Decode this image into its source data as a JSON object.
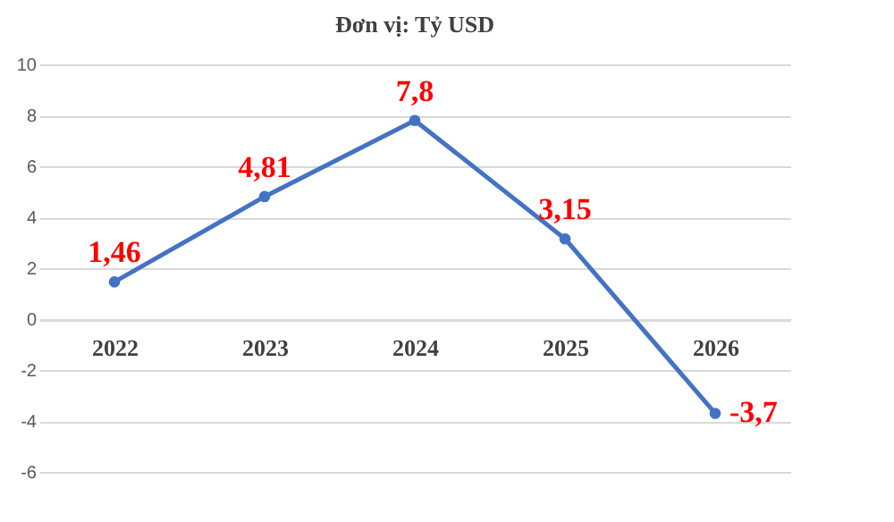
{
  "chart_data": {
    "type": "line",
    "title": "Đơn vị: Tỷ USD",
    "categories": [
      "2022",
      "2023",
      "2024",
      "2025",
      "2026"
    ],
    "series": [
      {
        "color": "#4472c4",
        "values": [
          1.46,
          4.81,
          7.8,
          3.15,
          -3.7
        ],
        "value_labels": [
          "1,46",
          "4,81",
          "7,8",
          "3,15",
          "-3,7"
        ]
      }
    ],
    "ylim": [
      -6,
      10
    ],
    "yticks": [
      -6,
      -4,
      -2,
      0,
      2,
      4,
      6,
      8,
      10
    ],
    "grid": "y",
    "marker": "circle",
    "line_style": "solid"
  }
}
